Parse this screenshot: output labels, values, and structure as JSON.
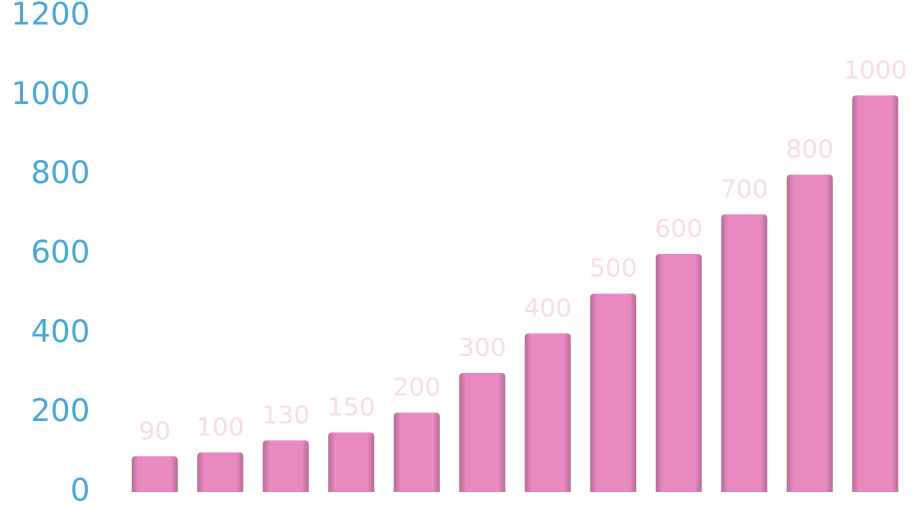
{
  "chart_data": {
    "type": "bar",
    "categories": [
      null,
      null,
      null,
      null,
      null,
      null,
      null,
      null,
      null,
      null,
      null,
      null
    ],
    "values": [
      90,
      100,
      130,
      150,
      200,
      300,
      400,
      500,
      600,
      700,
      800,
      1000
    ],
    "color": "#e88ac0",
    "ylim": [
      0,
      1200
    ],
    "yticks": [
      0,
      200,
      400,
      600,
      800,
      1000,
      1200
    ],
    "grid": false
  }
}
